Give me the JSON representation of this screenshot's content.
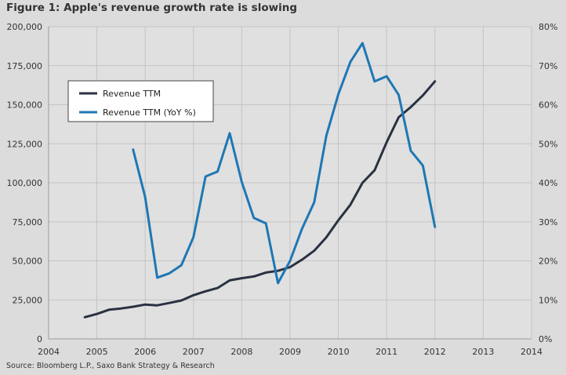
{
  "title": "Figure 1: Apple's revenue growth rate is slowing",
  "source": "Source: Bloomberg L.P., Saxo Bank Strategy & Research",
  "colors": {
    "revenue": "#2a3142",
    "yoy": "#1f77b4",
    "grid": "#c4c4c4",
    "background": "#dcdcdc",
    "plot_background": "#e0e0e0"
  },
  "chart_data": {
    "type": "line",
    "title": "Figure 1: Apple's revenue growth rate is slowing",
    "xlim": [
      2004,
      2014
    ],
    "x_ticks": [
      "2004",
      "2005",
      "2006",
      "2007",
      "2008",
      "2009",
      "2010",
      "2011",
      "2012",
      "2013",
      "2014"
    ],
    "y_left": {
      "lim": [
        0,
        200000
      ],
      "ticks": [
        "0",
        "25,000",
        "50,000",
        "75,000",
        "100,000",
        "125,000",
        "150,000",
        "175,000",
        "200,000"
      ]
    },
    "y_right": {
      "lim": [
        0,
        80
      ],
      "ticks": [
        "0%",
        "10%",
        "20%",
        "30%",
        "40%",
        "50%",
        "60%",
        "70%",
        "80%"
      ]
    },
    "grid": true,
    "legend": "upper-left",
    "series": [
      {
        "name": "Revenue TTM",
        "axis": "left",
        "color": "#2a3142",
        "x": [
          2004.75,
          2005.0,
          2005.25,
          2005.5,
          2005.75,
          2006.0,
          2006.25,
          2006.5,
          2006.75,
          2007.0,
          2007.25,
          2007.5,
          2007.75,
          2008.0,
          2008.25,
          2008.5,
          2008.75,
          2009.0,
          2009.25,
          2009.5,
          2009.75,
          2010.0,
          2010.25,
          2010.5,
          2010.75,
          2011.0,
          2011.25,
          2011.5,
          2011.75,
          2012.0
        ],
        "values": [
          13900,
          16000,
          18700,
          19500,
          20600,
          22000,
          21500,
          23000,
          24600,
          28000,
          30500,
          32600,
          37500,
          38900,
          40000,
          42500,
          43600,
          46000,
          50800,
          56500,
          65000,
          76000,
          86000,
          100000,
          108000,
          126000,
          142000,
          148500,
          156000,
          165000
        ]
      },
      {
        "name": "Revenue TTM (YoY %)",
        "axis": "right",
        "color": "#1f77b4",
        "x": [
          2005.75,
          2006.0,
          2006.25,
          2006.5,
          2006.75,
          2007.0,
          2007.25,
          2007.5,
          2007.75,
          2008.0,
          2008.25,
          2008.5,
          2008.75,
          2009.0,
          2009.25,
          2009.5,
          2009.75,
          2010.0,
          2010.25,
          2010.5,
          2010.75,
          2011.0,
          2011.25,
          2011.5,
          2011.75,
          2012.0
        ],
        "values": [
          48.5,
          36.3,
          15.7,
          16.8,
          18.9,
          26.1,
          41.6,
          42.9,
          52.7,
          40.2,
          31.0,
          29.6,
          14.3,
          20.0,
          28.3,
          35.0,
          52.0,
          62.7,
          71.0,
          75.8,
          66.0,
          67.3,
          62.5,
          48.2,
          44.4,
          28.7
        ]
      }
    ]
  }
}
